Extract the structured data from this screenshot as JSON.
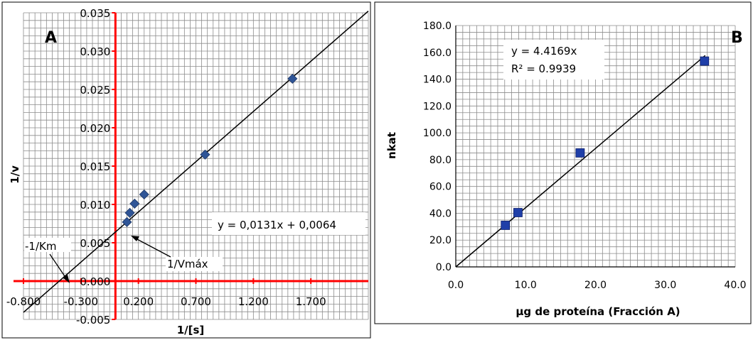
{
  "chart_data": [
    {
      "type": "scatter",
      "panel_label": "A",
      "xlabel": "1/[s]",
      "ylabel": "1/v",
      "xlim": [
        -0.8,
        2.2
      ],
      "ylim": [
        -0.005,
        0.035
      ],
      "x_ticks": [
        -0.8,
        -0.3,
        0.2,
        0.7,
        1.2,
        1.7
      ],
      "x_tick_labels": [
        "-0.800",
        "-0.300",
        "0.200",
        "0.700",
        "1.200",
        "1.700"
      ],
      "y_ticks": [
        -0.005,
        0.0,
        0.005,
        0.01,
        0.015,
        0.02,
        0.025,
        0.03,
        0.035
      ],
      "y_tick_labels": [
        "-0.005",
        "0.000",
        "0.005",
        "0.010",
        "0.015",
        "0.020",
        "0.025",
        "0.030",
        "0.035"
      ],
      "grid": true,
      "series": [
        {
          "marker": "diamond",
          "color": "#2f5597",
          "x": [
            0.1,
            0.125,
            0.167,
            0.25,
            0.78,
            1.54
          ],
          "y": [
            0.0077,
            0.0089,
            0.0101,
            0.0113,
            0.0165,
            0.0264
          ]
        }
      ],
      "trendline": {
        "slope": 0.0131,
        "intercept": 0.0064,
        "x_range": [
          -0.8,
          2.2
        ]
      },
      "annotations": {
        "equation": "y = 0,0131x + 0,0064",
        "km_label": "-1/Km",
        "vmax_label": "1/Vmáx"
      }
    },
    {
      "type": "scatter",
      "panel_label": "B",
      "xlabel": "µg de proteína (Fracción A)",
      "ylabel": "nkat",
      "xlim": [
        0,
        40
      ],
      "ylim": [
        0,
        180
      ],
      "x_ticks": [
        0,
        10,
        20,
        30,
        40
      ],
      "x_tick_labels": [
        "0.0",
        "10.0",
        "20.0",
        "30.0",
        "40.0"
      ],
      "y_ticks": [
        0,
        20,
        40,
        60,
        80,
        100,
        120,
        140,
        160,
        180
      ],
      "y_tick_labels": [
        "0.0",
        "20.0",
        "40.0",
        "60.0",
        "80.0",
        "100.0",
        "120.0",
        "140.0",
        "160.0",
        "180.0"
      ],
      "grid": true,
      "series": [
        {
          "marker": "square",
          "color": "#1f3fa8",
          "x": [
            7.1,
            8.9,
            17.8,
            35.6
          ],
          "y": [
            31,
            40.5,
            85,
            153.5
          ]
        }
      ],
      "trendline": {
        "slope": 4.4169,
        "intercept": 0,
        "x_range": [
          0,
          35.7
        ]
      },
      "annotations": {
        "equation": "y = 4.4169x",
        "r2": "R² = 0.9939"
      }
    }
  ]
}
